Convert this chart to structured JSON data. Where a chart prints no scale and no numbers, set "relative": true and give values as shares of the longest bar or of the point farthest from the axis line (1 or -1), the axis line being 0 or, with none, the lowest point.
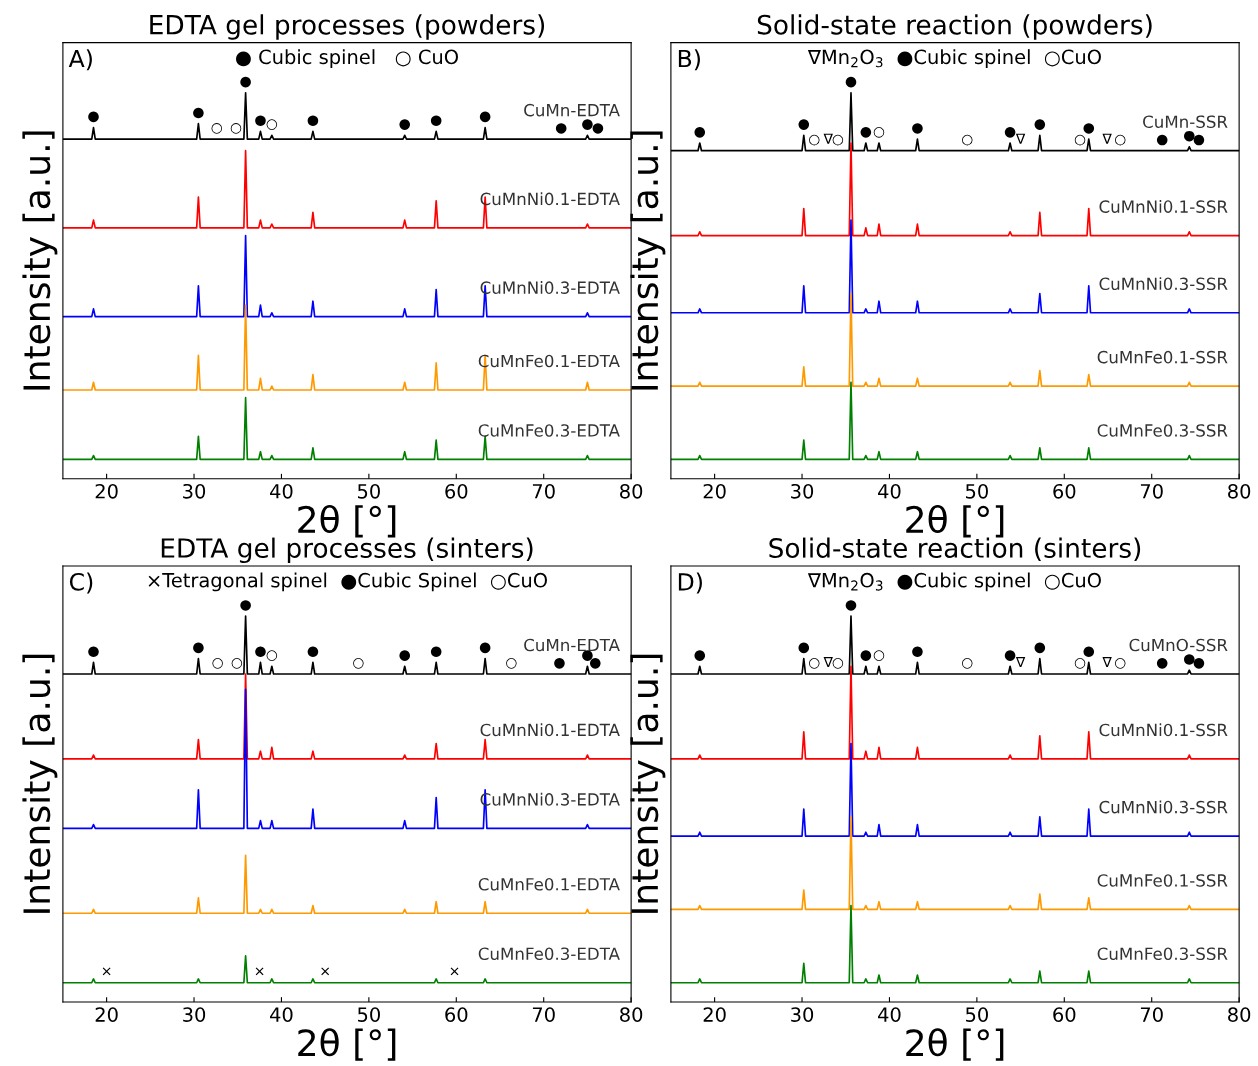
{
  "chart_data": [
    {
      "type": "line",
      "relative": true,
      "title": "EDTA gel processes (powders)",
      "xlabel": "2θ [°]",
      "ylabel": "Intensity [a.u.]",
      "xlim": [
        15,
        80
      ],
      "xticks": [
        20,
        30,
        40,
        50,
        60,
        70,
        80
      ],
      "grid": false,
      "legend": false,
      "x": [
        15,
        18.3,
        18.5,
        18.7,
        30.3,
        30.5,
        30.7,
        35.7,
        35.9,
        36.1,
        37.4,
        37.6,
        37.8,
        38.7,
        38.9,
        39.1,
        43.4,
        43.6,
        43.8,
        53.9,
        54.1,
        54.3,
        57.5,
        57.7,
        57.9,
        63.1,
        63.3,
        63.5,
        74.8,
        75.0,
        75.2,
        80
      ],
      "series": [
        {
          "name": "CuMn-EDTA",
          "color": "#000000",
          "values": [
            0.88,
            0.88,
            0.91,
            0.88,
            0.88,
            0.92,
            0.88,
            0.88,
            1.0,
            0.88,
            0.88,
            0.9,
            0.88,
            0.88,
            0.89,
            0.88,
            0.88,
            0.9,
            0.88,
            0.88,
            0.89,
            0.88,
            0.88,
            0.9,
            0.88,
            0.88,
            0.91,
            0.88,
            0.88,
            0.89,
            0.88,
            0.88
          ]
        },
        {
          "name": "CuMnNi0.1-EDTA",
          "color": "#ff0000",
          "values": [
            0.65,
            0.65,
            0.67,
            0.65,
            0.65,
            0.73,
            0.65,
            0.65,
            0.85,
            0.65,
            0.65,
            0.67,
            0.65,
            0.65,
            0.66,
            0.65,
            0.65,
            0.69,
            0.65,
            0.65,
            0.67,
            0.65,
            0.65,
            0.72,
            0.65,
            0.65,
            0.73,
            0.65,
            0.65,
            0.66,
            0.65,
            0.65
          ]
        },
        {
          "name": "CuMnNi0.3-EDTA",
          "color": "#0000ff",
          "values": [
            0.42,
            0.42,
            0.44,
            0.42,
            0.42,
            0.5,
            0.42,
            0.42,
            0.63,
            0.42,
            0.42,
            0.45,
            0.42,
            0.42,
            0.43,
            0.42,
            0.42,
            0.46,
            0.42,
            0.42,
            0.44,
            0.42,
            0.42,
            0.49,
            0.42,
            0.42,
            0.5,
            0.42,
            0.42,
            0.43,
            0.42,
            0.42
          ]
        },
        {
          "name": "CuMnFe0.1-EDTA",
          "color": "#ff9900",
          "values": [
            0.23,
            0.23,
            0.25,
            0.23,
            0.23,
            0.32,
            0.23,
            0.23,
            0.45,
            0.23,
            0.23,
            0.26,
            0.23,
            0.23,
            0.24,
            0.23,
            0.23,
            0.27,
            0.23,
            0.23,
            0.25,
            0.23,
            0.23,
            0.3,
            0.23,
            0.23,
            0.32,
            0.23,
            0.23,
            0.25,
            0.23,
            0.23
          ]
        },
        {
          "name": "CuMnFe0.3-EDTA",
          "color": "#008000",
          "values": [
            0.05,
            0.05,
            0.06,
            0.05,
            0.05,
            0.11,
            0.05,
            0.05,
            0.21,
            0.05,
            0.05,
            0.07,
            0.05,
            0.05,
            0.06,
            0.05,
            0.05,
            0.08,
            0.05,
            0.05,
            0.07,
            0.05,
            0.05,
            0.1,
            0.05,
            0.05,
            0.11,
            0.05,
            0.05,
            0.06,
            0.05,
            0.05
          ]
        }
      ],
      "annotations": [
        "A)",
        "● Cubic spinel   ○ CuO",
        {
          "text": "●",
          "x": 18.5,
          "y": 0.91
        },
        {
          "text": "●",
          "x": 30.5,
          "y": 0.92
        },
        {
          "text": "●",
          "x": 35.9,
          "y": 1.0
        },
        {
          "text": "●",
          "x": 37.6,
          "y": 0.9
        },
        {
          "text": "●",
          "x": 43.6,
          "y": 0.9
        },
        {
          "text": "●",
          "x": 54.1,
          "y": 0.89
        },
        {
          "text": "●",
          "x": 57.7,
          "y": 0.9
        },
        {
          "text": "●",
          "x": 63.3,
          "y": 0.91
        },
        {
          "text": "●",
          "x": 72.0,
          "y": 0.88
        },
        {
          "text": "●",
          "x": 75.0,
          "y": 0.89
        },
        {
          "text": "●",
          "x": 76.2,
          "y": 0.88
        },
        {
          "text": "○",
          "x": 32.6,
          "y": 0.88
        },
        {
          "text": "○",
          "x": 34.8,
          "y": 0.88
        },
        {
          "text": "○",
          "x": 38.9,
          "y": 0.89
        }
      ]
    },
    {
      "type": "line",
      "relative": true,
      "title": "Solid-state reaction (powders)",
      "xlabel": "2θ [°]",
      "ylabel": "Intensity [a.u.]",
      "xlim": [
        15,
        80
      ],
      "xticks": [
        20,
        30,
        40,
        50,
        60,
        70,
        80
      ],
      "grid": false,
      "legend": false,
      "x": [
        15,
        18.1,
        18.3,
        18.5,
        30.0,
        30.2,
        30.4,
        35.4,
        35.6,
        35.8,
        37.1,
        37.3,
        37.5,
        38.6,
        38.8,
        39.0,
        43.0,
        43.2,
        43.4,
        53.6,
        53.8,
        54.0,
        57.0,
        57.2,
        57.4,
        62.6,
        62.8,
        63.0,
        74.1,
        74.3,
        74.5,
        80
      ],
      "series": [
        {
          "name": "CuMn-SSR",
          "color": "#000000",
          "values": [
            0.85,
            0.85,
            0.87,
            0.85,
            0.85,
            0.89,
            0.85,
            0.85,
            1.0,
            0.85,
            0.85,
            0.87,
            0.85,
            0.85,
            0.87,
            0.85,
            0.85,
            0.88,
            0.85,
            0.85,
            0.87,
            0.85,
            0.85,
            0.89,
            0.85,
            0.85,
            0.88,
            0.85,
            0.85,
            0.86,
            0.85,
            0.85
          ]
        },
        {
          "name": "CuMnNi0.1-SSR",
          "color": "#ff0000",
          "values": [
            0.63,
            0.63,
            0.64,
            0.63,
            0.63,
            0.7,
            0.63,
            0.63,
            0.87,
            0.63,
            0.63,
            0.65,
            0.63,
            0.63,
            0.66,
            0.63,
            0.63,
            0.66,
            0.63,
            0.63,
            0.64,
            0.63,
            0.63,
            0.69,
            0.63,
            0.63,
            0.7,
            0.63,
            0.63,
            0.64,
            0.63,
            0.63
          ]
        },
        {
          "name": "CuMnNi0.3-SSR",
          "color": "#0000ff",
          "values": [
            0.43,
            0.43,
            0.44,
            0.43,
            0.43,
            0.5,
            0.43,
            0.43,
            0.67,
            0.43,
            0.43,
            0.44,
            0.43,
            0.43,
            0.46,
            0.43,
            0.43,
            0.46,
            0.43,
            0.43,
            0.44,
            0.43,
            0.43,
            0.48,
            0.43,
            0.43,
            0.5,
            0.43,
            0.43,
            0.44,
            0.43,
            0.43
          ]
        },
        {
          "name": "CuMnFe0.1-SSR",
          "color": "#ff9900",
          "values": [
            0.24,
            0.24,
            0.25,
            0.24,
            0.24,
            0.29,
            0.24,
            0.24,
            0.48,
            0.24,
            0.24,
            0.25,
            0.24,
            0.24,
            0.26,
            0.24,
            0.24,
            0.26,
            0.24,
            0.24,
            0.25,
            0.24,
            0.24,
            0.28,
            0.24,
            0.24,
            0.27,
            0.24,
            0.24,
            0.25,
            0.24,
            0.24
          ]
        },
        {
          "name": "CuMnFe0.3-SSR",
          "color": "#008000",
          "values": [
            0.05,
            0.05,
            0.06,
            0.05,
            0.05,
            0.1,
            0.05,
            0.05,
            0.25,
            0.05,
            0.05,
            0.06,
            0.05,
            0.05,
            0.07,
            0.05,
            0.05,
            0.07,
            0.05,
            0.05,
            0.06,
            0.05,
            0.05,
            0.08,
            0.05,
            0.05,
            0.08,
            0.05,
            0.05,
            0.06,
            0.05,
            0.05
          ]
        }
      ],
      "annotations": [
        "B)",
        "∇Mn$_{2}$O$_{3}$  ●Cubic spinel  ○CuO",
        {
          "text": "∇",
          "x": 33.0,
          "y": 0.85
        },
        {
          "text": "∇",
          "x": 55.0,
          "y": 0.85
        },
        {
          "text": "∇",
          "x": 64.9,
          "y": 0.85
        },
        {
          "text": "●",
          "x": 18.3,
          "y": 0.87
        },
        {
          "text": "●",
          "x": 30.2,
          "y": 0.89
        },
        {
          "text": "●",
          "x": 35.6,
          "y": 1.0
        },
        {
          "text": "●",
          "x": 37.3,
          "y": 0.87
        },
        {
          "text": "●",
          "x": 43.2,
          "y": 0.88
        },
        {
          "text": "●",
          "x": 53.8,
          "y": 0.87
        },
        {
          "text": "●",
          "x": 57.2,
          "y": 0.89
        },
        {
          "text": "●",
          "x": 62.8,
          "y": 0.88
        },
        {
          "text": "●",
          "x": 71.2,
          "y": 0.85
        },
        {
          "text": "●",
          "x": 74.3,
          "y": 0.86
        },
        {
          "text": "●",
          "x": 75.4,
          "y": 0.85
        },
        {
          "text": "○",
          "x": 31.4,
          "y": 0.85
        },
        {
          "text": "○",
          "x": 34.1,
          "y": 0.85
        },
        {
          "text": "○",
          "x": 38.8,
          "y": 0.87
        },
        {
          "text": "○",
          "x": 48.9,
          "y": 0.85
        },
        {
          "text": "○",
          "x": 61.8,
          "y": 0.85
        },
        {
          "text": "○",
          "x": 66.4,
          "y": 0.85
        }
      ]
    },
    {
      "type": "line",
      "relative": true,
      "title": "EDTA gel processes (sinters)",
      "xlabel": "2θ [°]",
      "ylabel": "Intensity [a.u.]",
      "xlim": [
        15,
        80
      ],
      "xticks": [
        20,
        30,
        40,
        50,
        60,
        70,
        80
      ],
      "grid": false,
      "legend": false,
      "x": [
        15,
        18.3,
        18.5,
        18.7,
        30.3,
        30.5,
        30.7,
        35.7,
        35.9,
        36.1,
        37.4,
        37.6,
        37.8,
        38.7,
        38.9,
        39.1,
        43.4,
        43.6,
        43.8,
        53.9,
        54.1,
        54.3,
        57.5,
        57.7,
        57.9,
        63.1,
        63.3,
        63.5,
        74.8,
        75.0,
        75.2,
        80
      ],
      "series": [
        {
          "name": "CuMn-EDTA",
          "color": "#000000",
          "values": [
            0.85,
            0.85,
            0.88,
            0.85,
            0.85,
            0.89,
            0.85,
            0.85,
            1.0,
            0.85,
            0.85,
            0.88,
            0.85,
            0.85,
            0.87,
            0.85,
            0.85,
            0.88,
            0.85,
            0.85,
            0.87,
            0.85,
            0.85,
            0.88,
            0.85,
            0.85,
            0.89,
            0.85,
            0.85,
            0.87,
            0.85,
            0.85
          ]
        },
        {
          "name": "CuMnNi0.1-EDTA",
          "color": "#ff0000",
          "values": [
            0.63,
            0.63,
            0.64,
            0.63,
            0.63,
            0.68,
            0.63,
            0.63,
            0.85,
            0.63,
            0.63,
            0.65,
            0.63,
            0.63,
            0.66,
            0.63,
            0.63,
            0.65,
            0.63,
            0.63,
            0.64,
            0.63,
            0.63,
            0.67,
            0.63,
            0.63,
            0.68,
            0.63,
            0.63,
            0.64,
            0.63,
            0.63
          ]
        },
        {
          "name": "CuMnNi0.3-EDTA",
          "color": "#0000ff",
          "values": [
            0.45,
            0.45,
            0.46,
            0.45,
            0.45,
            0.55,
            0.45,
            0.45,
            0.81,
            0.45,
            0.45,
            0.47,
            0.45,
            0.45,
            0.47,
            0.45,
            0.45,
            0.5,
            0.45,
            0.45,
            0.47,
            0.45,
            0.45,
            0.53,
            0.45,
            0.45,
            0.55,
            0.45,
            0.45,
            0.46,
            0.45,
            0.45
          ]
        },
        {
          "name": "CuMnFe0.1-EDTA",
          "color": "#ff9900",
          "values": [
            0.23,
            0.23,
            0.24,
            0.23,
            0.23,
            0.27,
            0.23,
            0.23,
            0.38,
            0.23,
            0.23,
            0.24,
            0.23,
            0.23,
            0.24,
            0.23,
            0.23,
            0.25,
            0.23,
            0.23,
            0.24,
            0.23,
            0.23,
            0.26,
            0.23,
            0.23,
            0.26,
            0.23,
            0.23,
            0.24,
            0.23,
            0.23
          ]
        },
        {
          "name": "CuMnFe0.3-EDTA",
          "color": "#008000",
          "values": [
            0.05,
            0.05,
            0.06,
            0.05,
            0.05,
            0.06,
            0.05,
            0.05,
            0.12,
            0.05,
            0.05,
            0.05,
            0.05,
            0.05,
            0.06,
            0.05,
            0.05,
            0.06,
            0.05,
            0.05,
            0.05,
            0.05,
            0.05,
            0.06,
            0.05,
            0.05,
            0.06,
            0.05,
            0.05,
            0.05,
            0.05,
            0.05
          ]
        }
      ],
      "annotations": [
        "C)",
        "×Tetragonal spinel  ●Cubic Spinel  ○CuO",
        {
          "text": "●",
          "x": 18.5,
          "y": 0.88
        },
        {
          "text": "●",
          "x": 30.5,
          "y": 0.89
        },
        {
          "text": "●",
          "x": 35.9,
          "y": 1.0
        },
        {
          "text": "●",
          "x": 37.6,
          "y": 0.88
        },
        {
          "text": "●",
          "x": 43.6,
          "y": 0.88
        },
        {
          "text": "●",
          "x": 54.1,
          "y": 0.87
        },
        {
          "text": "●",
          "x": 57.7,
          "y": 0.88
        },
        {
          "text": "●",
          "x": 63.3,
          "y": 0.89
        },
        {
          "text": "●",
          "x": 71.8,
          "y": 0.85
        },
        {
          "text": "●",
          "x": 75.0,
          "y": 0.87
        },
        {
          "text": "●",
          "x": 75.9,
          "y": 0.85
        },
        {
          "text": "○",
          "x": 32.7,
          "y": 0.85
        },
        {
          "text": "○",
          "x": 34.9,
          "y": 0.85
        },
        {
          "text": "○",
          "x": 38.9,
          "y": 0.87
        },
        {
          "text": "○",
          "x": 48.8,
          "y": 0.85
        },
        {
          "text": "○",
          "x": 66.3,
          "y": 0.85
        },
        {
          "text": "×",
          "x": 20.0,
          "y": 0.05
        },
        {
          "text": "×",
          "x": 37.5,
          "y": 0.05
        },
        {
          "text": "×",
          "x": 45.0,
          "y": 0.05
        },
        {
          "text": "×",
          "x": 59.8,
          "y": 0.05
        }
      ]
    },
    {
      "type": "line",
      "relative": true,
      "title": "Solid-state reaction (sinters)",
      "xlabel": "2θ [°]",
      "ylabel": "Intensity [a.u.]",
      "xlim": [
        15,
        80
      ],
      "xticks": [
        20,
        30,
        40,
        50,
        60,
        70,
        80
      ],
      "grid": false,
      "legend": false,
      "x": [
        15,
        18.1,
        18.3,
        18.5,
        30.0,
        30.2,
        30.4,
        35.4,
        35.6,
        35.8,
        37.1,
        37.3,
        37.5,
        38.6,
        38.8,
        39.0,
        43.0,
        43.2,
        43.4,
        53.6,
        53.8,
        54.0,
        57.0,
        57.2,
        57.4,
        62.6,
        62.8,
        63.0,
        74.1,
        74.3,
        74.5,
        80
      ],
      "series": [
        {
          "name": "CuMnO-SSR",
          "color": "#000000",
          "values": [
            0.85,
            0.85,
            0.87,
            0.85,
            0.85,
            0.89,
            0.85,
            0.85,
            1.0,
            0.85,
            0.85,
            0.87,
            0.85,
            0.85,
            0.87,
            0.85,
            0.85,
            0.88,
            0.85,
            0.85,
            0.87,
            0.85,
            0.85,
            0.89,
            0.85,
            0.85,
            0.88,
            0.85,
            0.85,
            0.86,
            0.85,
            0.85
          ]
        },
        {
          "name": "CuMnNi0.1-SSR",
          "color": "#ff0000",
          "values": [
            0.63,
            0.63,
            0.64,
            0.63,
            0.63,
            0.7,
            0.63,
            0.63,
            0.87,
            0.63,
            0.63,
            0.65,
            0.63,
            0.63,
            0.66,
            0.63,
            0.63,
            0.66,
            0.63,
            0.63,
            0.64,
            0.63,
            0.63,
            0.69,
            0.63,
            0.63,
            0.7,
            0.63,
            0.63,
            0.64,
            0.63,
            0.63
          ]
        },
        {
          "name": "CuMnNi0.3-SSR",
          "color": "#0000ff",
          "values": [
            0.43,
            0.43,
            0.44,
            0.43,
            0.43,
            0.5,
            0.43,
            0.43,
            0.67,
            0.43,
            0.43,
            0.44,
            0.43,
            0.43,
            0.46,
            0.43,
            0.43,
            0.46,
            0.43,
            0.43,
            0.44,
            0.43,
            0.43,
            0.48,
            0.43,
            0.43,
            0.5,
            0.43,
            0.43,
            0.44,
            0.43,
            0.43
          ]
        },
        {
          "name": "CuMnFe0.1-SSR",
          "color": "#ff9900",
          "values": [
            0.24,
            0.24,
            0.25,
            0.24,
            0.24,
            0.29,
            0.24,
            0.24,
            0.48,
            0.24,
            0.24,
            0.25,
            0.24,
            0.24,
            0.26,
            0.24,
            0.24,
            0.26,
            0.24,
            0.24,
            0.25,
            0.24,
            0.24,
            0.28,
            0.24,
            0.24,
            0.27,
            0.24,
            0.24,
            0.25,
            0.24,
            0.24
          ]
        },
        {
          "name": "CuMnFe0.3-SSR",
          "color": "#008000",
          "values": [
            0.05,
            0.05,
            0.06,
            0.05,
            0.05,
            0.1,
            0.05,
            0.05,
            0.25,
            0.05,
            0.05,
            0.06,
            0.05,
            0.05,
            0.07,
            0.05,
            0.05,
            0.07,
            0.05,
            0.05,
            0.06,
            0.05,
            0.05,
            0.08,
            0.05,
            0.05,
            0.08,
            0.05,
            0.05,
            0.06,
            0.05,
            0.05
          ]
        }
      ],
      "annotations": [
        "D)",
        "∇Mn$_{2}$O$_{3}$  ●Cubic spinel  ○CuO",
        {
          "text": "∇",
          "x": 33.0,
          "y": 0.85
        },
        {
          "text": "∇",
          "x": 55.0,
          "y": 0.85
        },
        {
          "text": "∇",
          "x": 64.9,
          "y": 0.85
        },
        {
          "text": "●",
          "x": 18.3,
          "y": 0.87
        },
        {
          "text": "●",
          "x": 30.2,
          "y": 0.89
        },
        {
          "text": "●",
          "x": 35.6,
          "y": 1.0
        },
        {
          "text": "●",
          "x": 37.3,
          "y": 0.87
        },
        {
          "text": "●",
          "x": 43.2,
          "y": 0.88
        },
        {
          "text": "●",
          "x": 53.8,
          "y": 0.87
        },
        {
          "text": "●",
          "x": 57.2,
          "y": 0.89
        },
        {
          "text": "●",
          "x": 62.8,
          "y": 0.88
        },
        {
          "text": "●",
          "x": 71.2,
          "y": 0.85
        },
        {
          "text": "●",
          "x": 74.3,
          "y": 0.86
        },
        {
          "text": "●",
          "x": 75.4,
          "y": 0.85
        },
        {
          "text": "○",
          "x": 31.4,
          "y": 0.85
        },
        {
          "text": "○",
          "x": 34.1,
          "y": 0.85
        },
        {
          "text": "○",
          "x": 38.8,
          "y": 0.87
        },
        {
          "text": "○",
          "x": 48.9,
          "y": 0.85
        },
        {
          "text": "○",
          "x": 61.8,
          "y": 0.85
        },
        {
          "text": "○",
          "x": 66.4,
          "y": 0.85
        }
      ]
    }
  ]
}
